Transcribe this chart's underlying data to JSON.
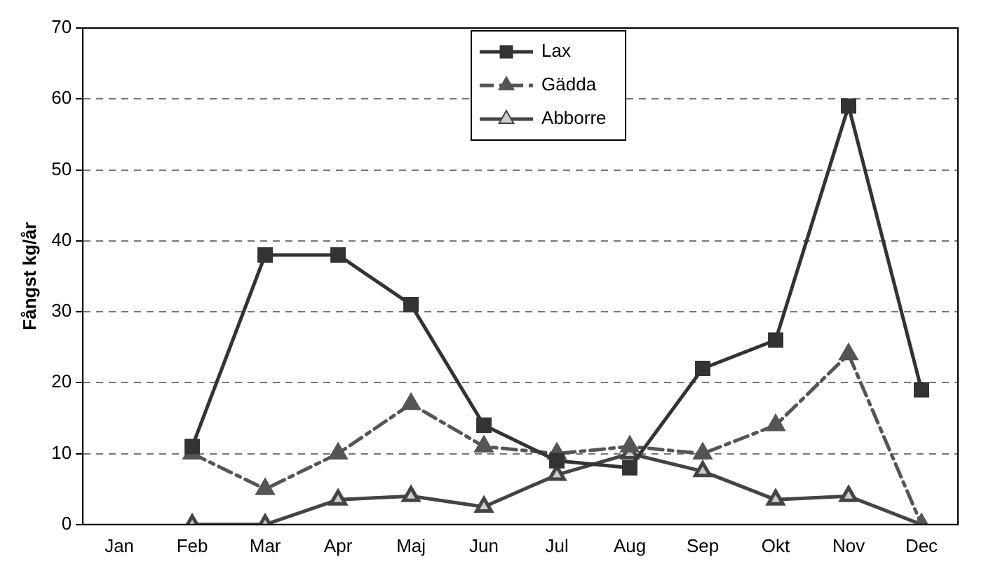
{
  "chart_data": {
    "type": "line",
    "ylabel": "Fångst kg/år",
    "categories": [
      "Jan",
      "Feb",
      "Mar",
      "Apr",
      "Maj",
      "Jun",
      "Jul",
      "Aug",
      "Sep",
      "Okt",
      "Nov",
      "Dec"
    ],
    "series": [
      {
        "name": "Lax",
        "color": "#333333",
        "marker": "square",
        "line_style": "solid",
        "values": [
          null,
          11,
          38,
          38,
          31,
          14,
          9,
          8,
          22,
          26,
          59,
          19
        ]
      },
      {
        "name": "Gädda",
        "color": "#555555",
        "marker": "triangle",
        "line_style": "dashed",
        "values": [
          null,
          10,
          5,
          10,
          17,
          11,
          10,
          11,
          10,
          14,
          24,
          0
        ]
      },
      {
        "name": "Abborre",
        "color": "#444444",
        "marker": "triangle",
        "line_style": "solid",
        "values": [
          null,
          0,
          0,
          3.5,
          4,
          2.5,
          7,
          10,
          7.5,
          3.5,
          4,
          0
        ]
      }
    ],
    "ylim": [
      0,
      70
    ],
    "yticks": [
      0,
      10,
      20,
      30,
      40,
      50,
      60,
      70
    ],
    "grid": "y",
    "legend": "top"
  }
}
